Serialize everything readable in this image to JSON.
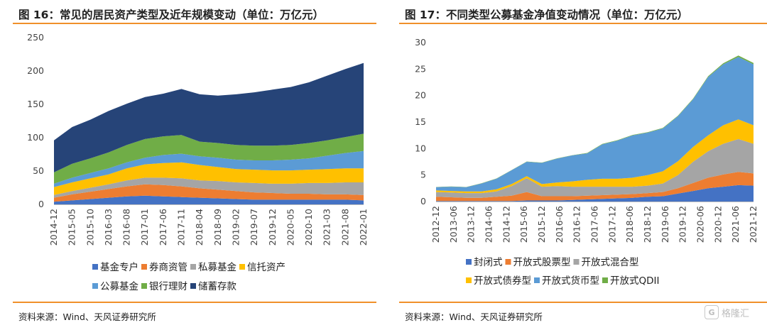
{
  "left": {
    "title": "图 16：常见的居民资产类型及近年规模变动（单位：万亿元）",
    "source": "资料来源：Wind、天风证券研究所"
  },
  "right": {
    "title": "图 17：不同类型公募基金净值变动情况（单位：万亿元）",
    "source": "资料来源：Wind、天风证券研究所"
  },
  "watermark": {
    "label": "格隆汇",
    "icon": "gelonghui-logo-icon"
  },
  "chart_data": [
    {
      "type": "area",
      "stacked": true,
      "ylim": [
        0,
        250
      ],
      "yticks": [
        0,
        50,
        100,
        150,
        200,
        250
      ],
      "grid": false,
      "legend_position": "bottom",
      "x": [
        "2014-12",
        "2015-05",
        "2015-10",
        "2016-03",
        "2016-08",
        "2017-01",
        "2017-06",
        "2017-11",
        "2018-04",
        "2018-09",
        "2019-02",
        "2019-07",
        "2019-12",
        "2020-05",
        "2020-10",
        "2021-03",
        "2021-08",
        "2022-01"
      ],
      "xticks": [
        "2014-12",
        "2015-05",
        "2015-10",
        "2016-03",
        "2016-08",
        "2017-01",
        "2017-06",
        "2017-11",
        "2018-04",
        "2018-09",
        "2019-02",
        "2019-07",
        "2019-12",
        "2020-05",
        "2020-10",
        "2021-03",
        "2021-08",
        "2022-01"
      ],
      "legend_rows": [
        [
          "基金专户",
          "券商资管",
          "私募基金",
          "信托资产"
        ],
        [
          "公募基金",
          "银行理财",
          "储蓄存款"
        ]
      ],
      "series": [
        {
          "name": "基金专户",
          "color": "#4472c4",
          "values": [
            4,
            6,
            8,
            10,
            12,
            13,
            12,
            11,
            10,
            9,
            8,
            7,
            7,
            7,
            7,
            7,
            7,
            6
          ]
        },
        {
          "name": "券商资管",
          "color": "#ed7d31",
          "values": [
            6,
            9,
            11,
            13,
            15,
            17,
            17,
            16,
            14,
            13,
            12,
            11,
            10,
            9,
            9,
            8,
            8,
            8
          ]
        },
        {
          "name": "私募基金",
          "color": "#a5a5a5",
          "values": [
            4,
            5,
            6,
            7,
            9,
            10,
            11,
            12,
            12,
            13,
            13,
            14,
            14,
            15,
            16,
            17,
            18,
            19
          ]
        },
        {
          "name": "信托资产",
          "color": "#ffc000",
          "values": [
            12,
            13,
            14,
            15,
            18,
            20,
            22,
            24,
            23,
            21,
            20,
            20,
            20,
            20,
            20,
            21,
            21,
            21
          ]
        },
        {
          "name": "公募基金",
          "color": "#5b9bd5",
          "values": [
            5,
            7,
            8,
            9,
            9,
            10,
            12,
            13,
            13,
            14,
            14,
            14,
            15,
            16,
            17,
            20,
            23,
            26
          ]
        },
        {
          "name": "银行理财",
          "color": "#70ad47",
          "values": [
            17,
            21,
            22,
            24,
            26,
            28,
            28,
            28,
            22,
            22,
            22,
            22,
            22,
            22,
            23,
            23,
            24,
            26
          ]
        },
        {
          "name": "储蓄存款",
          "color": "#264478",
          "values": [
            48,
            55,
            58,
            62,
            62,
            63,
            64,
            69,
            71,
            71,
            76,
            80,
            84,
            87,
            91,
            97,
            102,
            106
          ]
        }
      ]
    },
    {
      "type": "area",
      "stacked": true,
      "ylim": [
        0,
        30
      ],
      "yticks": [
        0,
        5,
        10,
        15,
        20,
        25,
        30
      ],
      "grid": false,
      "legend_position": "bottom",
      "x": [
        "2012-12",
        "2013-06",
        "2013-12",
        "2014-06",
        "2014-12",
        "2015-03",
        "2015-06",
        "2015-09",
        "2015-12",
        "2016-06",
        "2016-12",
        "2017-06",
        "2017-12",
        "2018-06",
        "2018-12",
        "2019-06",
        "2019-12",
        "2020-06",
        "2020-12",
        "2021-06",
        "2021-12",
        "2022-03"
      ],
      "xticks": [
        "2012-12",
        "2013-06",
        "2013-12",
        "2014-06",
        "2014-12",
        "2015-06",
        "2015-12",
        "2016-06",
        "2016-12",
        "2017-06",
        "2017-12",
        "2018-06",
        "2018-12",
        "2019-06",
        "2019-12",
        "2020-06",
        "2020-12",
        "2021-06",
        "2021-12"
      ],
      "legend_rows": [
        [
          "封闭式",
          "开放式股票型",
          "开放式混合型"
        ],
        [
          "开放式债券型",
          "开放式货币型",
          "开放式QDII"
        ]
      ],
      "series": [
        {
          "name": "封闭式",
          "color": "#4472c4",
          "values": [
            0.1,
            0.1,
            0.1,
            0.1,
            0.1,
            0.1,
            0.2,
            0.2,
            0.2,
            0.3,
            0.4,
            0.5,
            0.6,
            0.7,
            0.9,
            1.0,
            1.5,
            2.0,
            2.5,
            2.8,
            3.1,
            3.0
          ]
        },
        {
          "name": "开放式股票型",
          "color": "#ed7d31",
          "values": [
            0.8,
            0.7,
            0.6,
            0.6,
            0.8,
            1.0,
            1.6,
            0.8,
            0.8,
            0.7,
            0.7,
            0.7,
            0.7,
            0.7,
            0.7,
            0.8,
            1.0,
            1.5,
            2.0,
            2.3,
            2.5,
            2.3
          ]
        },
        {
          "name": "开放式混合型",
          "color": "#a5a5a5",
          "values": [
            0.9,
            0.9,
            0.9,
            0.9,
            1.0,
            1.8,
            2.6,
            1.8,
            1.9,
            1.8,
            1.7,
            1.6,
            1.5,
            1.4,
            1.4,
            1.6,
            2.5,
            4.0,
            5.0,
            5.8,
            6.2,
            5.6
          ]
        },
        {
          "name": "开放式债券型",
          "color": "#ffc000",
          "values": [
            0.3,
            0.3,
            0.3,
            0.3,
            0.4,
            0.4,
            0.4,
            0.5,
            0.7,
            1.0,
            1.3,
            1.5,
            1.5,
            1.7,
            2.0,
            2.3,
            2.6,
            2.8,
            3.0,
            3.5,
            3.7,
            3.5
          ]
        },
        {
          "name": "开放式货币型",
          "color": "#5b9bd5",
          "values": [
            0.6,
            0.8,
            0.8,
            1.5,
            2.0,
            2.6,
            2.7,
            4.0,
            4.5,
            4.9,
            5.0,
            6.5,
            7.2,
            8.0,
            8.0,
            8.1,
            8.5,
            9.0,
            11.0,
            11.5,
            11.8,
            11.5
          ]
        },
        {
          "name": "开放式QDII",
          "color": "#70ad47",
          "values": [
            0.05,
            0.05,
            0.05,
            0.05,
            0.05,
            0.05,
            0.05,
            0.05,
            0.05,
            0.05,
            0.08,
            0.08,
            0.08,
            0.08,
            0.08,
            0.1,
            0.1,
            0.12,
            0.15,
            0.2,
            0.25,
            0.25
          ]
        }
      ]
    }
  ]
}
